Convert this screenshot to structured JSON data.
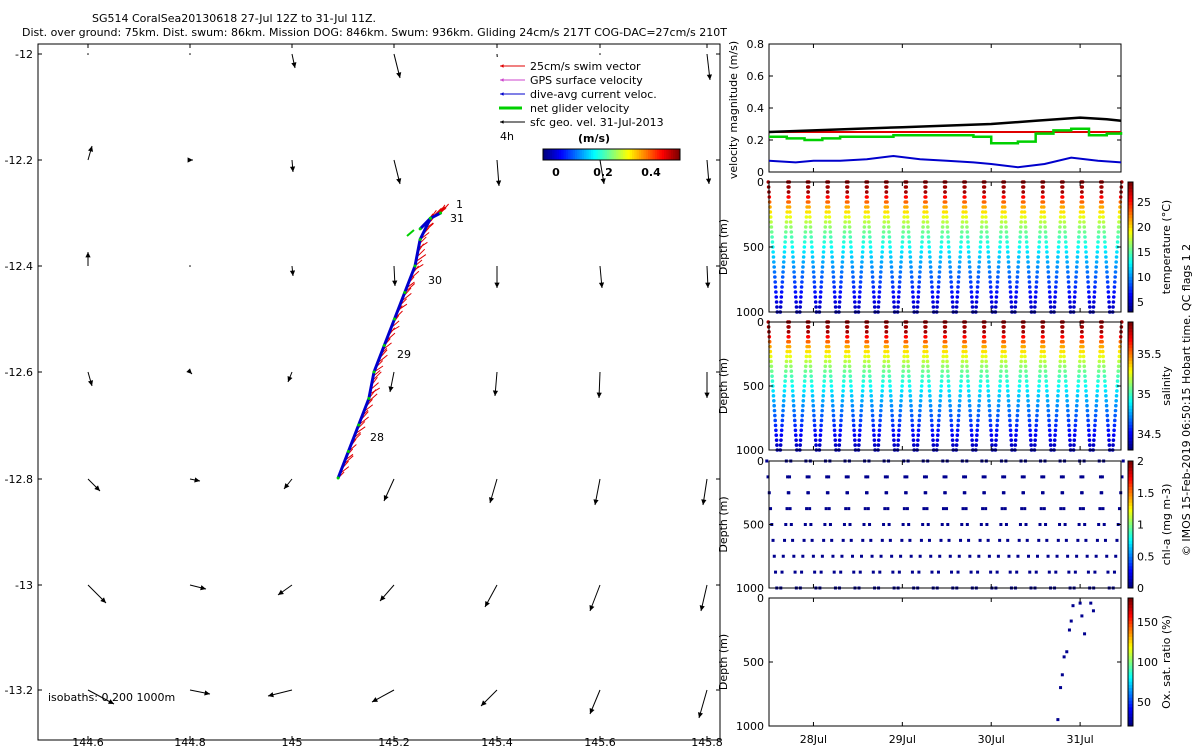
{
  "header": {
    "title_line1": "SG514 CoralSea20130618 27-Jul 12Z to 31-Jul 11Z.",
    "title_line2": "Dist. over ground: 75km. Dist. swum: 86km. Mission DOG: 846km. Swum: 936km. Gliding 24cm/s 217T COG-DAC=27cm/s 210T"
  },
  "map": {
    "xticks": [
      "144.6",
      "144.8",
      "145",
      "145.2",
      "145.4",
      "145.6",
      "145.8"
    ],
    "yticks": [
      "-12",
      "-12.2",
      "-12.4",
      "-12.6",
      "-12.8",
      "-13",
      "-13.2"
    ],
    "legend": [
      {
        "label": "25cm/s swim vector",
        "color": "#e00000"
      },
      {
        "label": "GPS surface velocity",
        "color": "#cc44cc"
      },
      {
        "label": "dive-avg current veloc.",
        "color": "#0000cc"
      },
      {
        "label": "net glider velocity",
        "color": "#00d000"
      },
      {
        "label": "sfc geo. vel. 31-Jul-2013",
        "color": "#000000"
      }
    ],
    "legend_time": "4h",
    "colorbar_title": "(m/s)",
    "colorbar_ticks": [
      "0",
      "0.2",
      "0.4"
    ],
    "day_labels": [
      "1",
      "31",
      "30",
      "29",
      "28"
    ],
    "isobaths_label": "isobaths: 0   200  1000m"
  },
  "panels": {
    "velocity": {
      "ylabel": "velocity magnitude (m/s)",
      "yticks": [
        "0",
        "0.2",
        "0.4",
        "0.6",
        "0.8"
      ]
    },
    "temperature": {
      "ylabel": "Depth (m)",
      "yticks": [
        "0",
        "500",
        "1000"
      ],
      "cbar_label": "temperature (°C)",
      "cbar_ticks": [
        "5",
        "10",
        "15",
        "20",
        "25"
      ]
    },
    "salinity": {
      "ylabel": "Depth (m)",
      "yticks": [
        "0",
        "500",
        "1000"
      ],
      "cbar_label": "salinity",
      "cbar_ticks": [
        "34.5",
        "35",
        "35.5"
      ]
    },
    "chla": {
      "ylabel": "Depth (m)",
      "yticks": [
        "0",
        "500",
        "1000"
      ],
      "cbar_label": "chl-a (mg m-3)",
      "cbar_ticks": [
        "0",
        "0.5",
        "1",
        "1.5",
        "2"
      ]
    },
    "oxygen": {
      "ylabel": "Depth (m)",
      "yticks": [
        "0",
        "500",
        "1000"
      ],
      "cbar_label": "Ox. sat. ratio (%)",
      "cbar_ticks": [
        "50",
        "100",
        "150"
      ]
    },
    "xticks": [
      "28Jul",
      "29Jul",
      "30Jul",
      "31Jul"
    ]
  },
  "side_text": "© IMOS 15-Feb-2019 06:50:15 Hobart time. QC flags 1  2",
  "chart_data": [
    {
      "type": "scatter",
      "name": "glider track map",
      "xlim": [
        144.5,
        145.82
      ],
      "ylim": [
        -13.25,
        -11.98
      ],
      "track": [
        [
          145.09,
          -12.8
        ],
        [
          145.11,
          -12.75
        ],
        [
          145.13,
          -12.7
        ],
        [
          145.15,
          -12.65
        ],
        [
          145.16,
          -12.6
        ],
        [
          145.18,
          -12.55
        ],
        [
          145.2,
          -12.5
        ],
        [
          145.22,
          -12.45
        ],
        [
          145.24,
          -12.4
        ],
        [
          145.25,
          -12.35
        ],
        [
          145.27,
          -12.31
        ],
        [
          145.29,
          -12.3
        ],
        [
          145.27,
          -12.31
        ],
        [
          145.25,
          -12.33
        ]
      ],
      "geo_vectors_grid": {
        "lon": [
          144.6,
          144.8,
          145.0,
          145.2,
          145.4,
          145.6,
          145.8
        ],
        "lat": [
          -12.0,
          -12.2,
          -12.4,
          -12.6,
          -12.8,
          -13.0,
          -13.2
        ]
      }
    },
    {
      "type": "line",
      "name": "velocity magnitude",
      "xlim": [
        27.5,
        31.46
      ],
      "ylim": [
        0,
        0.8
      ],
      "series": [
        {
          "name": "25cm/s swim vector",
          "color": "#e00000",
          "x": [
            27.5,
            31.46
          ],
          "values": [
            0.25,
            0.25
          ]
        },
        {
          "name": "sfc geo. vel. 31-Jul-2013",
          "color": "#000000",
          "x": [
            27.5,
            28.0,
            28.5,
            29.0,
            29.5,
            30.0,
            30.5,
            31.0,
            31.3,
            31.46
          ],
          "values": [
            0.25,
            0.26,
            0.27,
            0.28,
            0.29,
            0.3,
            0.32,
            0.34,
            0.33,
            0.32
          ]
        },
        {
          "name": "dive-avg current veloc.",
          "color": "#0000cc",
          "x": [
            27.5,
            27.8,
            28.0,
            28.3,
            28.6,
            28.9,
            29.2,
            29.5,
            29.8,
            30.0,
            30.3,
            30.6,
            30.9,
            31.2,
            31.46
          ],
          "values": [
            0.07,
            0.06,
            0.07,
            0.07,
            0.08,
            0.1,
            0.08,
            0.07,
            0.06,
            0.05,
            0.03,
            0.05,
            0.09,
            0.07,
            0.06
          ]
        },
        {
          "name": "net glider velocity",
          "color": "#00d000",
          "x": [
            27.5,
            27.7,
            27.9,
            28.1,
            28.3,
            28.6,
            28.9,
            29.2,
            29.5,
            29.8,
            30.0,
            30.3,
            30.5,
            30.7,
            30.9,
            31.1,
            31.3,
            31.46
          ],
          "values": [
            0.22,
            0.21,
            0.2,
            0.21,
            0.22,
            0.22,
            0.23,
            0.23,
            0.23,
            0.22,
            0.18,
            0.19,
            0.24,
            0.26,
            0.27,
            0.23,
            0.24,
            0.25
          ]
        }
      ]
    },
    {
      "type": "heatmap",
      "name": "temperature section",
      "ylim": [
        0,
        1000
      ],
      "clim": [
        3,
        29
      ],
      "dives": 18
    },
    {
      "type": "heatmap",
      "name": "salinity section",
      "ylim": [
        0,
        1000
      ],
      "clim": [
        34.3,
        35.8
      ],
      "dives": 18
    },
    {
      "type": "scatter",
      "name": "chl-a section",
      "ylim": [
        0,
        1000
      ],
      "clim": [
        0,
        2
      ],
      "dives": 18
    },
    {
      "type": "scatter",
      "name": "oxygen section",
      "ylim": [
        0,
        1000
      ],
      "clim": [
        20,
        180
      ],
      "points_time": [
        30.75,
        30.78,
        30.8,
        30.82,
        30.85,
        30.88,
        30.9,
        30.92,
        31.0,
        31.02,
        31.05,
        31.12,
        31.15
      ],
      "points_depth": [
        950,
        700,
        600,
        460,
        420,
        250,
        180,
        60,
        40,
        140,
        280,
        40,
        100
      ]
    }
  ]
}
